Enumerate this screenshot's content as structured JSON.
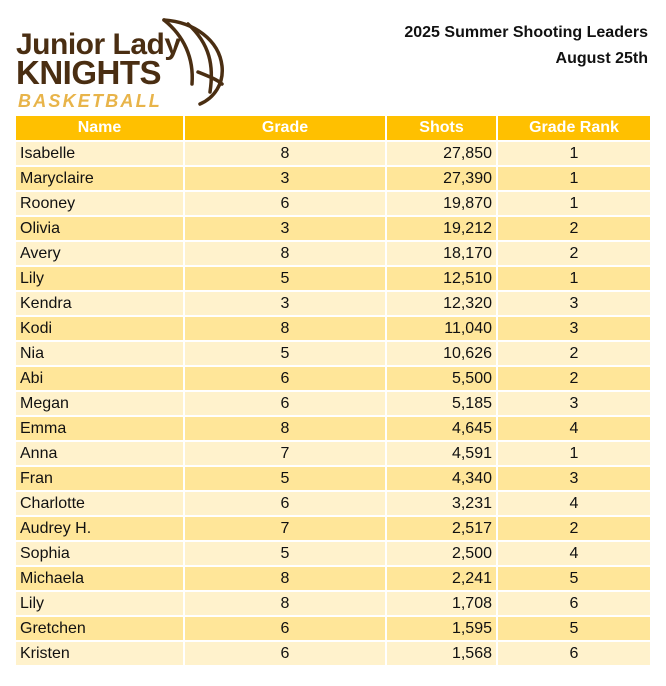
{
  "logo": {
    "line1": "Junior Lady",
    "line2": "KNIGHTS",
    "line3": "BASKETBALL"
  },
  "report": {
    "title": "2025 Summer Shooting Leaders",
    "date": "August 25th"
  },
  "table": {
    "headers": [
      "Name",
      "Grade",
      "Shots",
      "Grade Rank"
    ],
    "rows": [
      {
        "name": "Isabelle",
        "grade": "8",
        "shots": "27,850",
        "rank": "1"
      },
      {
        "name": "Maryclaire",
        "grade": "3",
        "shots": "27,390",
        "rank": "1"
      },
      {
        "name": "Rooney",
        "grade": "6",
        "shots": "19,870",
        "rank": "1"
      },
      {
        "name": "Olivia",
        "grade": "3",
        "shots": "19,212",
        "rank": "2"
      },
      {
        "name": "Avery",
        "grade": "8",
        "shots": "18,170",
        "rank": "2"
      },
      {
        "name": "Lily",
        "grade": "5",
        "shots": "12,510",
        "rank": "1"
      },
      {
        "name": "Kendra",
        "grade": "3",
        "shots": "12,320",
        "rank": "3"
      },
      {
        "name": "Kodi",
        "grade": "8",
        "shots": "11,040",
        "rank": "3"
      },
      {
        "name": "Nia",
        "grade": "5",
        "shots": "10,626",
        "rank": "2"
      },
      {
        "name": "Abi",
        "grade": "6",
        "shots": "5,500",
        "rank": "2"
      },
      {
        "name": "Megan",
        "grade": "6",
        "shots": "5,185",
        "rank": "3"
      },
      {
        "name": "Emma",
        "grade": "8",
        "shots": "4,645",
        "rank": "4"
      },
      {
        "name": "Anna",
        "grade": "7",
        "shots": "4,591",
        "rank": "1"
      },
      {
        "name": "Fran",
        "grade": "5",
        "shots": "4,340",
        "rank": "3"
      },
      {
        "name": "Charlotte",
        "grade": "6",
        "shots": "3,231",
        "rank": "4"
      },
      {
        "name": "Audrey H.",
        "grade": "7",
        "shots": "2,517",
        "rank": "2"
      },
      {
        "name": "Sophia",
        "grade": "5",
        "shots": "2,500",
        "rank": "4"
      },
      {
        "name": "Michaela",
        "grade": "8",
        "shots": "2,241",
        "rank": "5"
      },
      {
        "name": "Lily",
        "grade": "8",
        "shots": "1,708",
        "rank": "6"
      },
      {
        "name": "Gretchen",
        "grade": "6",
        "shots": "1,595",
        "rank": "5"
      },
      {
        "name": "Kristen",
        "grade": "6",
        "shots": "1,568",
        "rank": "6"
      }
    ]
  },
  "colors": {
    "header_fill": "#ffc000",
    "row_light": "#fff2cc",
    "row_dark": "#ffe699",
    "logo_brown": "#4a2e12",
    "logo_gold": "#e8b44a"
  }
}
